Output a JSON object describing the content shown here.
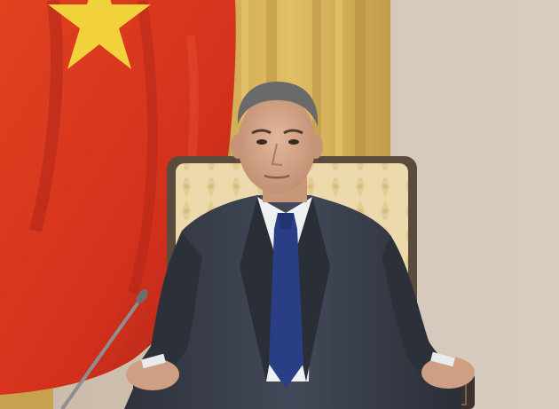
{
  "photo": {
    "colors": {
      "flag_red": "#d8321f",
      "flag_red_shadow": "#b1241a",
      "flag_star": "#f2d23a",
      "curtain_gold": "#d8b45c",
      "curtain_shadow": "#b48d3d",
      "wall": "#cdbfaf",
      "wall_light": "#dacdbf",
      "chair_frame": "#5a4b3d",
      "chair_cushion": "#eedcb0",
      "suit": "#3a3f4c",
      "suit_shadow": "#262a33",
      "shirt": "#eef0f2",
      "tie": "#2a3e86",
      "skin": "#d7a98d",
      "hair": "#6a6a6a",
      "microphone": "#9a9a9a"
    },
    "elements": [
      "vietnam-flag",
      "gold-curtain",
      "beige-wall",
      "armchair",
      "seated-man",
      "microphone"
    ]
  }
}
